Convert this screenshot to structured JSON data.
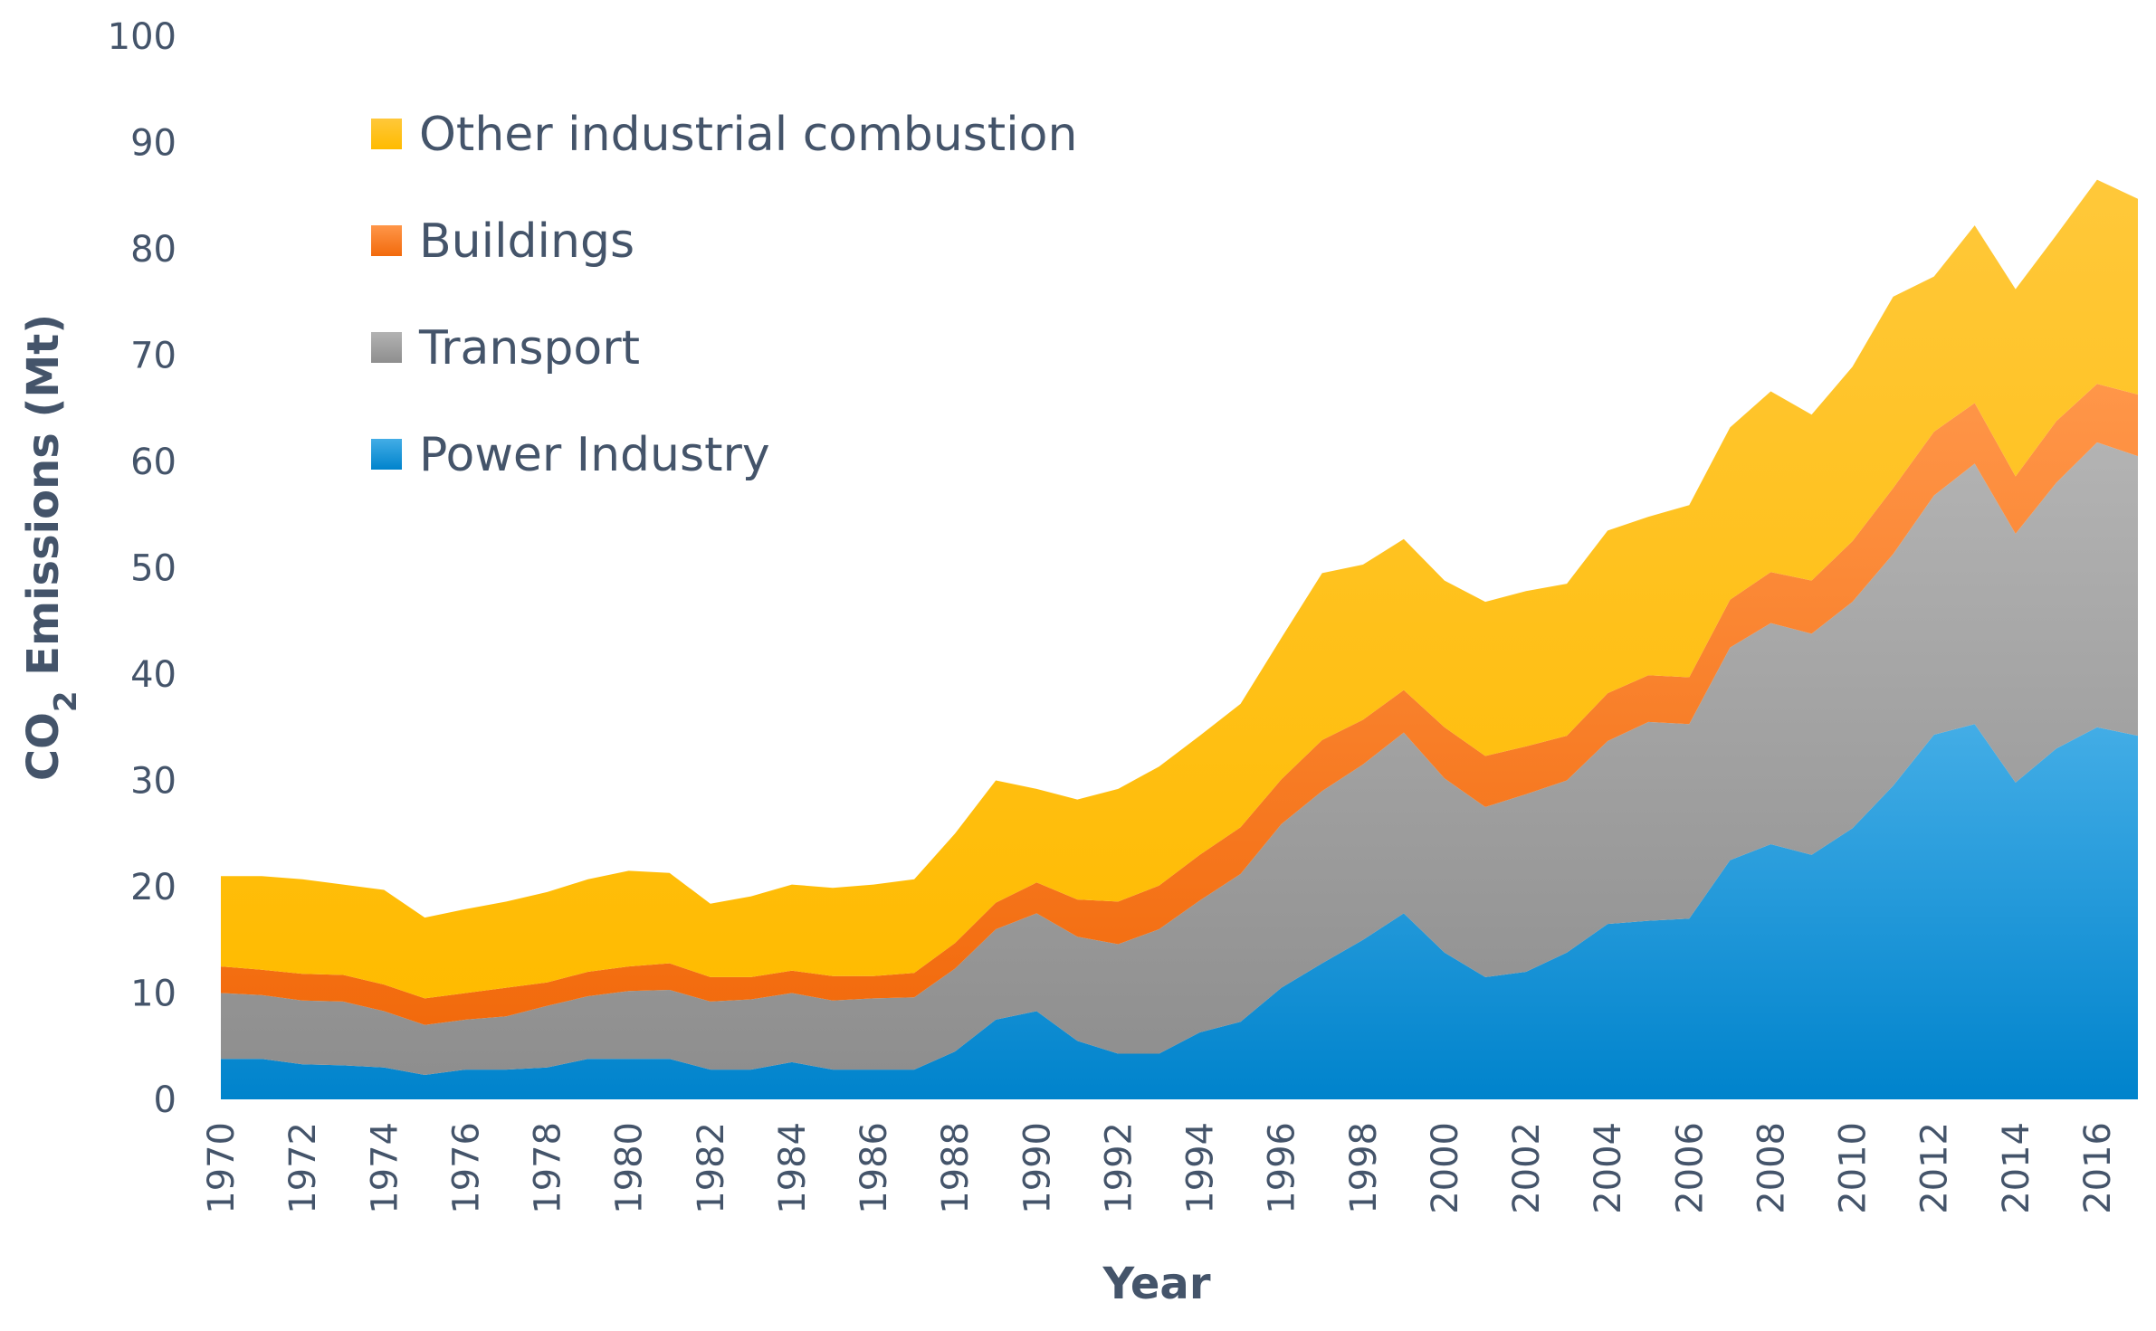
{
  "chart_data": {
    "type": "area",
    "stacked": true,
    "title": "",
    "xlabel": "Year",
    "ylabel": "CO2 Emissions (Mt)",
    "ylabel_main": "CO",
    "ylabel_sub": "2",
    "ylabel_rest": " Emissions (Mt)",
    "ylim": [
      0,
      100
    ],
    "yticks": [
      0,
      10,
      20,
      30,
      40,
      50,
      60,
      70,
      80,
      90,
      100
    ],
    "xtick_labels": [
      "1970",
      "1972",
      "1974",
      "1976",
      "1978",
      "1980",
      "1982",
      "1984",
      "1986",
      "1988",
      "1990",
      "1992",
      "1994",
      "1996",
      "1998",
      "2000",
      "2002",
      "2004",
      "2006",
      "2008",
      "2010",
      "2012",
      "2014",
      "2016"
    ],
    "legend_position": "top-left",
    "grid": false,
    "x": [
      1970,
      1971,
      1972,
      1973,
      1974,
      1975,
      1976,
      1977,
      1978,
      1979,
      1980,
      1981,
      1982,
      1983,
      1984,
      1985,
      1986,
      1987,
      1988,
      1989,
      1990,
      1991,
      1992,
      1993,
      1994,
      1995,
      1996,
      1997,
      1998,
      1999,
      2000,
      2001,
      2002,
      2003,
      2004,
      2005,
      2006,
      2007,
      2008,
      2009,
      2010,
      2011,
      2012,
      2013,
      2014,
      2015,
      2016,
      2017
    ],
    "series": [
      {
        "name": "Power Industry",
        "color": "#0090d8",
        "values": [
          3.8,
          3.8,
          3.3,
          3.2,
          3.0,
          2.3,
          2.8,
          2.8,
          3.0,
          3.8,
          3.8,
          3.8,
          2.8,
          2.8,
          3.5,
          2.8,
          2.8,
          2.8,
          4.5,
          7.5,
          8.3,
          5.5,
          4.3,
          4.3,
          6.3,
          7.3,
          10.5,
          12.8,
          15.0,
          17.5,
          13.8,
          11.5,
          12.0,
          13.8,
          16.5,
          16.8,
          17.0,
          22.5,
          24.0,
          23.0,
          25.5,
          29.5,
          34.3,
          35.3,
          29.8,
          33.0,
          35.0,
          34.2
        ]
      },
      {
        "name": "Transport",
        "color": "#a5a5a5",
        "values": [
          6.2,
          6.0,
          6.0,
          6.0,
          5.3,
          4.7,
          4.7,
          5.0,
          5.8,
          5.9,
          6.4,
          6.5,
          6.4,
          6.6,
          6.5,
          6.5,
          6.7,
          6.8,
          7.8,
          8.5,
          9.2,
          9.8,
          10.3,
          11.7,
          12.4,
          13.9,
          15.4,
          16.2,
          16.5,
          17.0,
          16.4,
          16.0,
          16.7,
          16.2,
          17.2,
          18.7,
          18.3,
          20.0,
          20.8,
          20.8,
          21.3,
          21.8,
          22.5,
          24.5,
          23.4,
          25.0,
          26.8,
          26.3
        ]
      },
      {
        "name": "Buildings",
        "color": "#ff7f27",
        "values": [
          2.5,
          2.4,
          2.5,
          2.5,
          2.5,
          2.5,
          2.5,
          2.7,
          2.2,
          2.3,
          2.3,
          2.5,
          2.3,
          2.1,
          2.1,
          2.3,
          2.1,
          2.3,
          2.4,
          2.5,
          2.9,
          3.5,
          4.0,
          4.1,
          4.3,
          4.4,
          4.2,
          4.8,
          4.2,
          4.0,
          4.8,
          4.8,
          4.5,
          4.2,
          4.5,
          4.4,
          4.4,
          4.5,
          4.8,
          5.0,
          5.7,
          6.2,
          6.0,
          5.7,
          5.4,
          5.8,
          5.5,
          5.8
        ]
      },
      {
        "name": "Other industrial combustion",
        "color": "#ffc000",
        "values": [
          8.5,
          8.8,
          8.9,
          8.5,
          8.9,
          7.6,
          7.9,
          8.1,
          8.5,
          8.7,
          9.0,
          8.5,
          6.9,
          7.6,
          8.1,
          8.3,
          8.6,
          8.8,
          10.3,
          11.5,
          8.8,
          9.4,
          10.6,
          11.2,
          11.2,
          11.6,
          13.3,
          15.7,
          14.6,
          14.2,
          13.8,
          14.5,
          14.6,
          14.3,
          15.3,
          14.9,
          16.2,
          16.2,
          17.0,
          15.6,
          16.4,
          18.0,
          14.6,
          16.7,
          17.6,
          17.5,
          19.2,
          18.4
        ]
      }
    ]
  }
}
